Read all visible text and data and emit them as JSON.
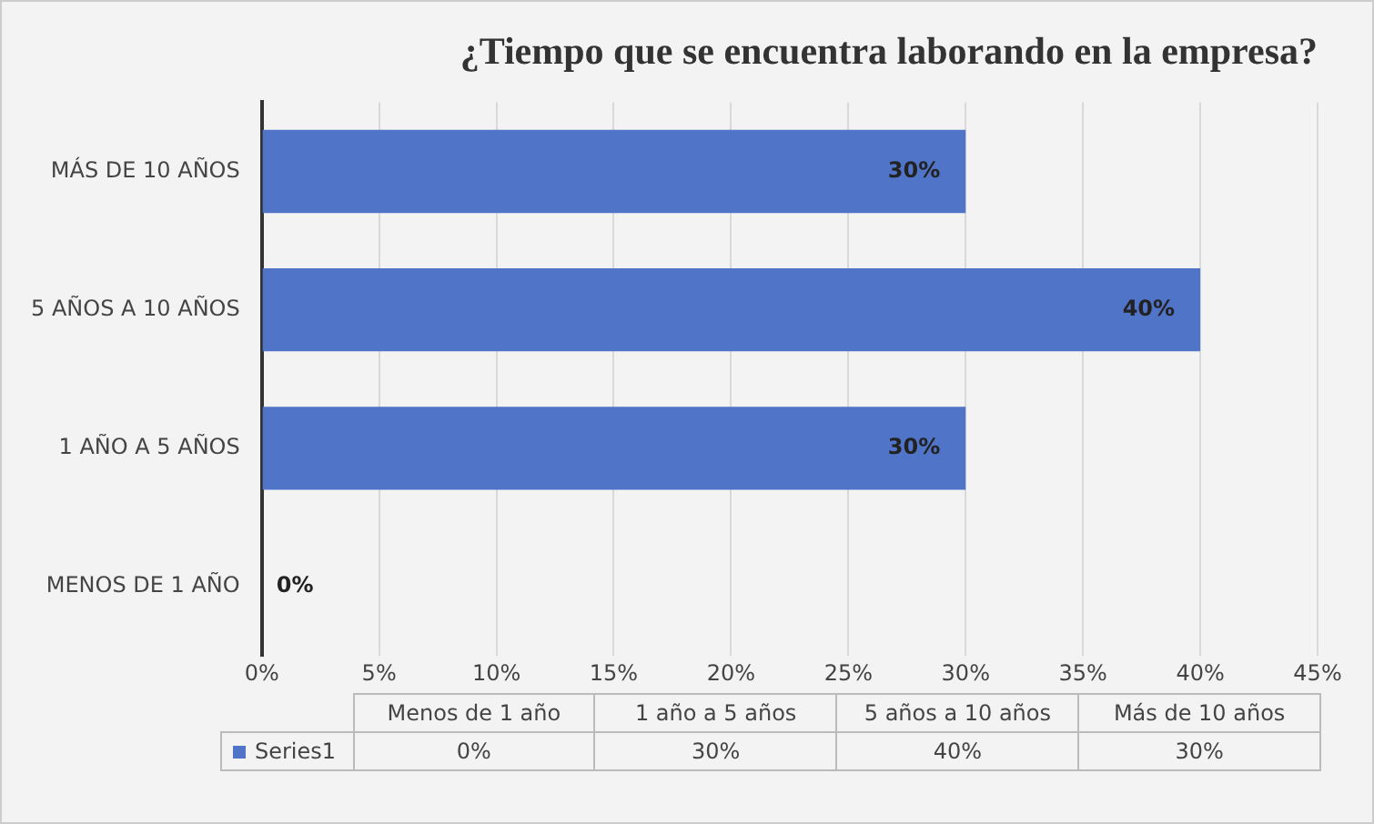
{
  "chart_data": {
    "type": "bar",
    "orientation": "horizontal",
    "title": "¿Tiempo que se encuentra laborando en la empresa?",
    "categories": [
      "MÁS DE 10 AÑOS",
      "5 AÑOS A 10 AÑOS",
      "1 AÑO A 5 AÑOS",
      "MENOS DE 1 AÑO"
    ],
    "series": [
      {
        "name": "Series1",
        "color": "#4f74c8",
        "values": [
          30,
          40,
          30,
          0
        ],
        "value_labels": [
          "30%",
          "40%",
          "30%",
          "0%"
        ]
      }
    ],
    "xlim": [
      0,
      45
    ],
    "xticks": [
      {
        "value": 0,
        "label": "0%"
      },
      {
        "value": 5,
        "label": "5%"
      },
      {
        "value": 10,
        "label": "10%"
      },
      {
        "value": 15,
        "label": "15%"
      },
      {
        "value": 20,
        "label": "20%"
      },
      {
        "value": 25,
        "label": "25%"
      },
      {
        "value": 30,
        "label": "30%"
      },
      {
        "value": 35,
        "label": "35%"
      },
      {
        "value": 40,
        "label": "40%"
      },
      {
        "value": 45,
        "label": "45%"
      }
    ],
    "grid": "x",
    "legend": "bottom",
    "annotations": [
      "Menos de 1 año",
      "1 año a 5 años",
      "5 años a 10 años",
      "Más de 10 años"
    ]
  }
}
